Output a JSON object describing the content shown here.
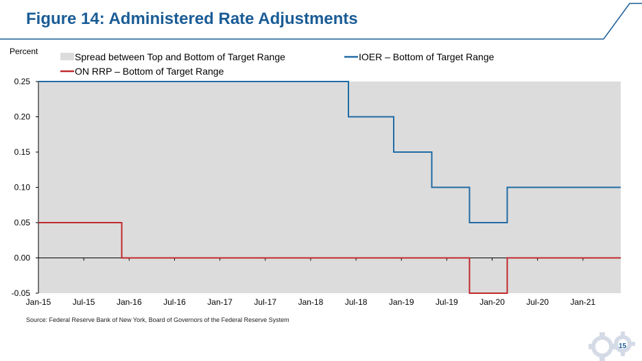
{
  "slide": {
    "title": "Figure 14: Administered Rate Adjustments",
    "source": "Source: Federal Reserve Bank of New York, Board of Governors of the Federal Reserve System",
    "page_number": "15"
  },
  "colors": {
    "title": "#1a5c96",
    "ioer": "#1f6aa5",
    "on_rrp": "#c0272d",
    "spread": "#dcdcdc"
  },
  "chart_data": {
    "type": "line",
    "ylabel": "Percent",
    "ylim": [
      -0.05,
      0.25
    ],
    "yticks": [
      "0.25",
      "0.20",
      "0.15",
      "0.10",
      "0.05",
      "0.00",
      "-0.05"
    ],
    "ytick_values": [
      0.25,
      0.2,
      0.15,
      0.1,
      0.05,
      0.0,
      -0.05
    ],
    "xlim": [
      "2015-01",
      "2021-06"
    ],
    "xticks": [
      "Jan-15",
      "Jul-15",
      "Jan-16",
      "Jul-16",
      "Jan-17",
      "Jul-17",
      "Jan-18",
      "Jul-18",
      "Jan-19",
      "Jul-19",
      "Jan-20",
      "Jul-20",
      "Jan-21"
    ],
    "xtick_dates": [
      "2015-01",
      "2015-07",
      "2016-01",
      "2016-07",
      "2017-01",
      "2017-07",
      "2018-01",
      "2018-07",
      "2019-01",
      "2019-07",
      "2020-01",
      "2020-07",
      "2021-01"
    ],
    "legend": {
      "placement": "top",
      "entries": [
        "Spread between Top and Bottom of Target Range",
        "IOER – Bottom of Target Range",
        "ON RRP – Bottom of Target Range"
      ]
    },
    "series": [
      {
        "name": "Spread between Top and Bottom of Target Range",
        "kind": "area",
        "x": [
          "2015-01",
          "2021-06"
        ],
        "y": [
          0.25,
          0.25
        ]
      },
      {
        "name": "IOER – Bottom of Target Range",
        "kind": "step",
        "x": [
          "2015-01",
          "2018-06",
          "2018-12",
          "2019-05",
          "2019-10",
          "2020-03",
          "2021-06"
        ],
        "y": [
          0.25,
          0.2,
          0.15,
          0.1,
          0.05,
          0.1,
          0.1
        ]
      },
      {
        "name": "ON RRP – Bottom of Target Range",
        "kind": "step",
        "x": [
          "2015-01",
          "2015-12",
          "2019-10",
          "2020-03",
          "2021-06"
        ],
        "y": [
          0.05,
          0.0,
          -0.05,
          0.0,
          0.0
        ]
      }
    ]
  }
}
